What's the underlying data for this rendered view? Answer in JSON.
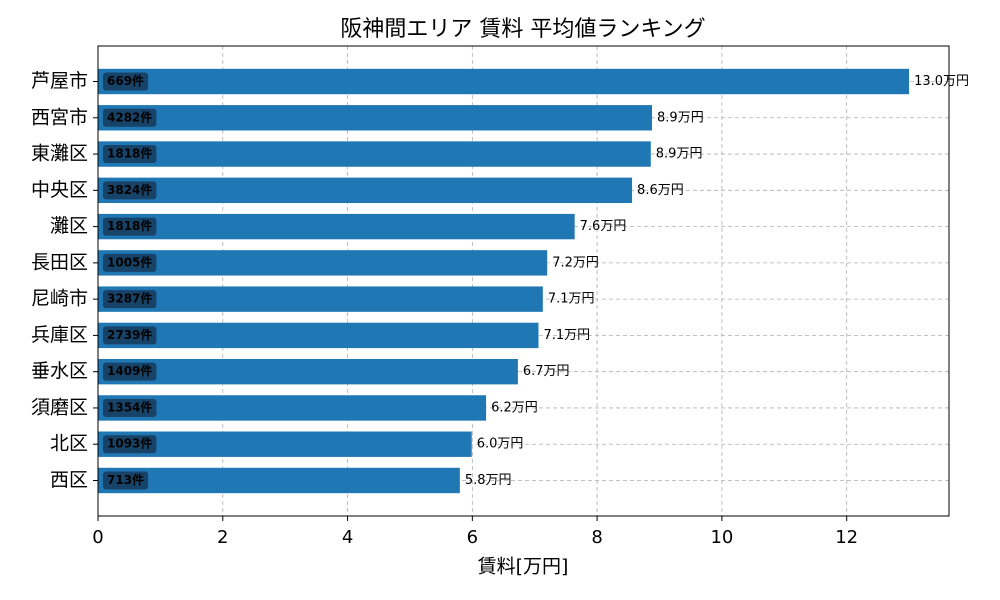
{
  "chart_data": {
    "type": "barh",
    "title": "阪神間エリア 賃料 平均値ランキング",
    "x_label": "賃料[万円]",
    "categories": [
      "芦屋市",
      "西宮市",
      "東灘区",
      "中央区",
      "灘区",
      "長田区",
      "尼崎市",
      "兵庫区",
      "垂水区",
      "須磨区",
      "北区",
      "西区"
    ],
    "values": [
      13.0,
      8.88,
      8.86,
      8.56,
      7.64,
      7.2,
      7.13,
      7.06,
      6.73,
      6.22,
      5.99,
      5.8
    ],
    "value_labels": [
      "13.0万円",
      "8.9万円",
      "8.9万円",
      "8.6万円",
      "7.6万円",
      "7.2万円",
      "7.1万円",
      "7.1万円",
      "6.7万円",
      "6.2万円",
      "6.0万円",
      "5.8万円"
    ],
    "count_labels": [
      "669件",
      "4282件",
      "1818件",
      "3824件",
      "1818件",
      "1005件",
      "3287件",
      "2739件",
      "1409件",
      "1354件",
      "1093件",
      "713件"
    ],
    "color": "#1f77b4",
    "xlim": [
      0,
      13.64
    ],
    "xticks": [
      0,
      2,
      4,
      6,
      8,
      10,
      12
    ],
    "grid": true
  }
}
